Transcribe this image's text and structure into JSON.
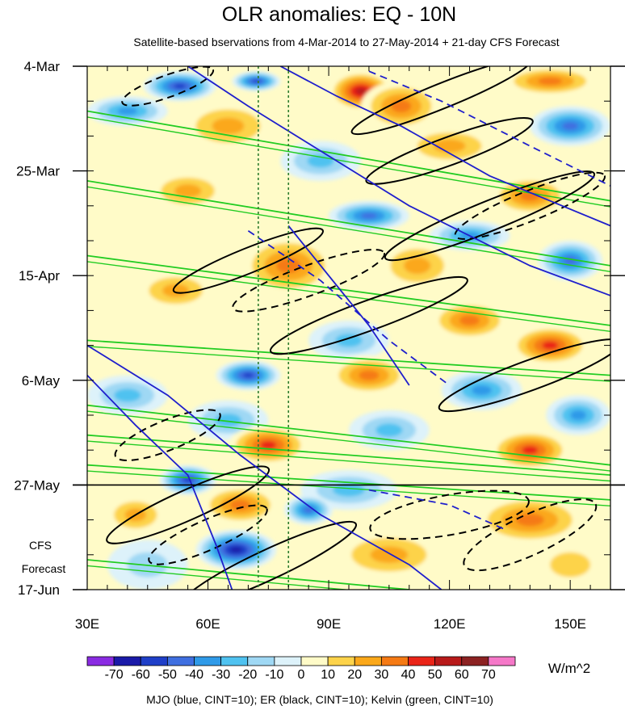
{
  "chart_data": {
    "type": "heatmap",
    "title": "OLR anomalies: EQ - 10N",
    "subtitle": "Satellite-based bservations from 4-Mar-2014 to 27-May-2014 + 21-day CFS Forecast",
    "x_axis": {
      "range": [
        30,
        160
      ],
      "tick_values": [
        30,
        60,
        90,
        120,
        150
      ],
      "tick_labels": [
        "30E",
        "60E",
        "90E",
        "120E",
        "150E"
      ]
    },
    "y_axis": {
      "range_days": [
        0,
        105
      ],
      "tick_days": [
        0,
        21,
        42,
        63,
        84,
        105
      ],
      "tick_labels": [
        "4-Mar",
        "25-Mar",
        "15-Apr",
        "6-May",
        "27-May",
        "17-Jun"
      ],
      "minor_every_days": 7
    },
    "forecast_start_day": 84,
    "forecast_label_lines": [
      "CFS",
      "Forecast"
    ],
    "reference_longitudes": [
      72.5,
      80
    ],
    "colorbar": {
      "units": "W/m^2",
      "levels": [
        -70,
        -60,
        -50,
        -40,
        -30,
        -20,
        -10,
        0,
        10,
        20,
        30,
        40,
        50,
        60,
        70
      ],
      "level_labels": [
        "-70",
        "-60",
        "-50",
        "-40",
        "-30",
        "-20",
        "-10",
        "0",
        "10",
        "20",
        "30",
        "40",
        "50",
        "60",
        "70"
      ],
      "colors": [
        "#8a2be2",
        "#1a1aa8",
        "#1f3fc8",
        "#3f6fe0",
        "#2f9ae8",
        "#4fc2f0",
        "#9fd8f4",
        "#ddf2fa",
        "#fffbc8",
        "#fdd34a",
        "#fba81a",
        "#f57a14",
        "#ea2418",
        "#b81a1a",
        "#8c2222",
        "#f578c8"
      ]
    },
    "anomaly_blobs": [
      {
        "lon": 53,
        "day": 4,
        "value": -55,
        "rlon": 9,
        "rday": 3
      },
      {
        "lon": 72,
        "day": 3,
        "value": -60,
        "rlon": 6,
        "rday": 2
      },
      {
        "lon": 98,
        "day": 5,
        "value": 55,
        "rlon": 8,
        "rday": 4
      },
      {
        "lon": 108,
        "day": 8,
        "value": 35,
        "rlon": 10,
        "rday": 5
      },
      {
        "lon": 145,
        "day": 3,
        "value": 40,
        "rlon": 12,
        "rday": 3
      },
      {
        "lon": 40,
        "day": 9,
        "value": -35,
        "rlon": 10,
        "rday": 3
      },
      {
        "lon": 65,
        "day": 12,
        "value": 25,
        "rlon": 12,
        "rday": 5
      },
      {
        "lon": 150,
        "day": 12,
        "value": -45,
        "rlon": 10,
        "rday": 4
      },
      {
        "lon": 120,
        "day": 16,
        "value": 30,
        "rlon": 12,
        "rday": 4
      },
      {
        "lon": 88,
        "day": 19,
        "value": -30,
        "rlon": 10,
        "rday": 4
      },
      {
        "lon": 55,
        "day": 25,
        "value": 25,
        "rlon": 10,
        "rday": 4
      },
      {
        "lon": 100,
        "day": 30,
        "value": -45,
        "rlon": 10,
        "rday": 3
      },
      {
        "lon": 140,
        "day": 26,
        "value": 40,
        "rlon": 10,
        "rday": 4
      },
      {
        "lon": 125,
        "day": 34,
        "value": -40,
        "rlon": 10,
        "rday": 3
      },
      {
        "lon": 80,
        "day": 40,
        "value": 40,
        "rlon": 12,
        "rday": 6
      },
      {
        "lon": 112,
        "day": 40,
        "value": 25,
        "rlon": 10,
        "rday": 5
      },
      {
        "lon": 150,
        "day": 39,
        "value": -45,
        "rlon": 8,
        "rday": 4
      },
      {
        "lon": 52,
        "day": 45,
        "value": 25,
        "rlon": 10,
        "rday": 4
      },
      {
        "lon": 125,
        "day": 51,
        "value": 40,
        "rlon": 10,
        "rday": 4
      },
      {
        "lon": 95,
        "day": 55,
        "value": -30,
        "rlon": 10,
        "rday": 4
      },
      {
        "lon": 145,
        "day": 56,
        "value": 45,
        "rlon": 10,
        "rday": 4
      },
      {
        "lon": 70,
        "day": 62,
        "value": -60,
        "rlon": 8,
        "rday": 3
      },
      {
        "lon": 100,
        "day": 62,
        "value": 40,
        "rlon": 10,
        "rday": 4
      },
      {
        "lon": 40,
        "day": 66,
        "value": -30,
        "rlon": 10,
        "rday": 4
      },
      {
        "lon": 128,
        "day": 65,
        "value": -40,
        "rlon": 10,
        "rday": 4
      },
      {
        "lon": 65,
        "day": 71,
        "value": -30,
        "rlon": 10,
        "rday": 4
      },
      {
        "lon": 105,
        "day": 73,
        "value": -30,
        "rlon": 10,
        "rday": 4
      },
      {
        "lon": 152,
        "day": 70,
        "value": -35,
        "rlon": 8,
        "rday": 4
      },
      {
        "lon": 75,
        "day": 76,
        "value": 45,
        "rlon": 10,
        "rday": 4
      },
      {
        "lon": 140,
        "day": 77,
        "value": 45,
        "rlon": 10,
        "rday": 4
      },
      {
        "lon": 55,
        "day": 83,
        "value": -55,
        "rlon": 7,
        "rday": 3
      },
      {
        "lon": 95,
        "day": 85,
        "value": -25,
        "rlon": 12,
        "rday": 4
      },
      {
        "lon": 68,
        "day": 88,
        "value": 40,
        "rlon": 10,
        "rday": 4
      },
      {
        "lon": 42,
        "day": 90,
        "value": 25,
        "rlon": 8,
        "rday": 4
      },
      {
        "lon": 85,
        "day": 89,
        "value": -50,
        "rlon": 6,
        "rday": 3
      },
      {
        "lon": 140,
        "day": 91,
        "value": 40,
        "rlon": 14,
        "rday": 5
      },
      {
        "lon": 67,
        "day": 97,
        "value": -65,
        "rlon": 10,
        "rday": 4
      },
      {
        "lon": 105,
        "day": 98,
        "value": 30,
        "rlon": 14,
        "rday": 5
      },
      {
        "lon": 150,
        "day": 100,
        "value": 20,
        "rlon": 10,
        "rday": 5
      },
      {
        "lon": 45,
        "day": 100,
        "value": -20,
        "rlon": 10,
        "rday": 5
      }
    ],
    "contour_series": [
      {
        "name": "MJO",
        "color": "#1f1fcc",
        "cint": 10,
        "dashed_negative": true
      },
      {
        "name": "ER",
        "color": "#000000",
        "cint": 10,
        "dashed_negative": true
      },
      {
        "name": "Kelvin",
        "color": "#22cc22",
        "cint": 10,
        "dashed_negative": false
      }
    ],
    "mjo_lines": [
      [
        [
          55,
          0
        ],
        [
          70,
          8
        ],
        [
          90,
          18
        ],
        [
          110,
          28
        ],
        [
          140,
          40
        ],
        [
          160,
          46
        ]
      ],
      [
        [
          78,
          0
        ],
        [
          92,
          6
        ],
        [
          108,
          12
        ],
        [
          130,
          22
        ],
        [
          160,
          32
        ]
      ],
      [
        [
          30,
          56
        ],
        [
          50,
          66
        ],
        [
          68,
          78
        ],
        [
          88,
          90
        ],
        [
          110,
          100
        ],
        [
          118,
          105
        ]
      ],
      [
        [
          30,
          62
        ],
        [
          42,
          72
        ],
        [
          55,
          82
        ],
        [
          62,
          96
        ],
        [
          66,
          105
        ]
      ],
      [
        [
          80,
          32
        ],
        [
          92,
          44
        ],
        [
          100,
          52
        ],
        [
          110,
          64
        ]
      ]
    ],
    "mjo_dashed": [
      [
        [
          100,
          1
        ],
        [
          118,
          7
        ],
        [
          140,
          16
        ],
        [
          160,
          24
        ]
      ],
      [
        [
          70,
          33
        ],
        [
          88,
          43
        ],
        [
          105,
          55
        ],
        [
          120,
          64
        ]
      ],
      [
        [
          100,
          85
        ],
        [
          120,
          88
        ],
        [
          134,
          93
        ]
      ]
    ],
    "er_ellipses": [
      {
        "lon": 118,
        "day": 6,
        "rlon": 24,
        "rday": 2.5,
        "angle": -22,
        "dashed": false
      },
      {
        "lon": 120,
        "day": 17,
        "rlon": 22,
        "rday": 2.8,
        "angle": -20,
        "dashed": false
      },
      {
        "lon": 130,
        "day": 30,
        "rlon": 28,
        "rday": 3,
        "angle": -22,
        "dashed": false
      },
      {
        "lon": 70,
        "day": 39,
        "rlon": 20,
        "rday": 2.5,
        "angle": -22,
        "dashed": false
      },
      {
        "lon": 100,
        "day": 50,
        "rlon": 26,
        "rday": 3,
        "angle": -20,
        "dashed": false
      },
      {
        "lon": 140,
        "day": 62,
        "rlon": 24,
        "rday": 3,
        "angle": -20,
        "dashed": false
      },
      {
        "lon": 55,
        "day": 88,
        "rlon": 22,
        "rday": 3,
        "angle": -24,
        "dashed": false
      },
      {
        "lon": 75,
        "day": 100,
        "rlon": 24,
        "rday": 3,
        "angle": -25,
        "dashed": false
      },
      {
        "lon": 50,
        "day": 4,
        "rlon": 12,
        "rday": 2.2,
        "angle": -20,
        "dashed": true
      },
      {
        "lon": 140,
        "day": 28,
        "rlon": 20,
        "rday": 3,
        "angle": -22,
        "dashed": true
      },
      {
        "lon": 85,
        "day": 43,
        "rlon": 20,
        "rday": 3,
        "angle": -20,
        "dashed": true
      },
      {
        "lon": 50,
        "day": 74,
        "rlon": 14,
        "rday": 3,
        "angle": -22,
        "dashed": true
      },
      {
        "lon": 60,
        "day": 94,
        "rlon": 16,
        "rday": 3,
        "angle": -24,
        "dashed": true
      },
      {
        "lon": 140,
        "day": 94,
        "rlon": 18,
        "rday": 4,
        "angle": -25,
        "dashed": true
      },
      {
        "lon": 120,
        "day": 90,
        "rlon": 20,
        "rday": 4,
        "angle": -10,
        "dashed": true
      }
    ],
    "kelvin_lines": [
      [
        [
          30,
          9
        ],
        [
          160,
          27
        ]
      ],
      [
        [
          30,
          23
        ],
        [
          160,
          40
        ]
      ],
      [
        [
          30,
          38
        ],
        [
          160,
          52
        ]
      ],
      [
        [
          30,
          55
        ],
        [
          160,
          62
        ]
      ],
      [
        [
          30,
          68
        ],
        [
          160,
          80
        ]
      ],
      [
        [
          30,
          80
        ],
        [
          160,
          87
        ]
      ],
      [
        [
          30,
          99
        ],
        [
          110,
          105
        ]
      ],
      [
        [
          30,
          74
        ],
        [
          160,
          82
        ]
      ]
    ],
    "footer": "MJO (blue, CINT=10); ER (black, CINT=10); Kelvin (green, CINT=10)"
  }
}
